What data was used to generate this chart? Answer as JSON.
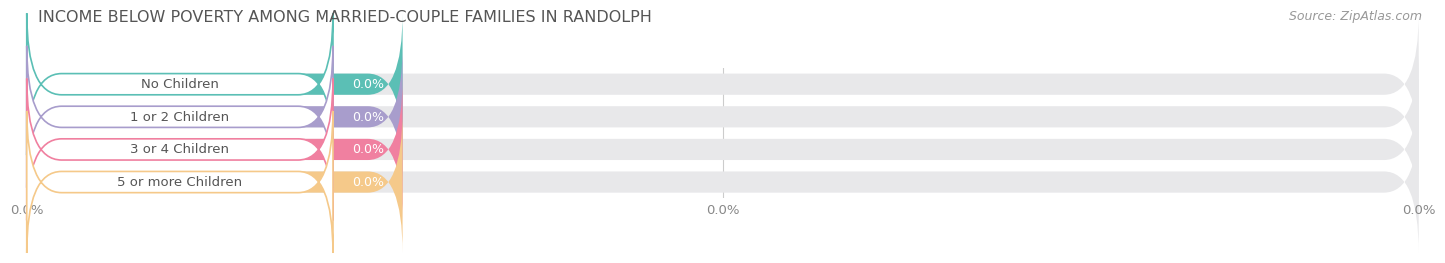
{
  "title": "INCOME BELOW POVERTY AMONG MARRIED-COUPLE FAMILIES IN RANDOLPH",
  "source": "Source: ZipAtlas.com",
  "categories": [
    "No Children",
    "1 or 2 Children",
    "3 or 4 Children",
    "5 or more Children"
  ],
  "values": [
    0.0,
    0.0,
    0.0,
    0.0
  ],
  "bar_colors": [
    "#5bbfb5",
    "#a89dcc",
    "#f080a0",
    "#f5c98a"
  ],
  "bar_bg_color": "#e8e8ea",
  "background_color": "#ffffff",
  "title_fontsize": 11.5,
  "label_fontsize": 9.5,
  "value_fontsize": 9,
  "source_fontsize": 9,
  "xlim": [
    0,
    100
  ],
  "xtick_positions": [
    0,
    50,
    100
  ],
  "xtick_labels": [
    "0.0%",
    "0.0%",
    "0.0%"
  ]
}
